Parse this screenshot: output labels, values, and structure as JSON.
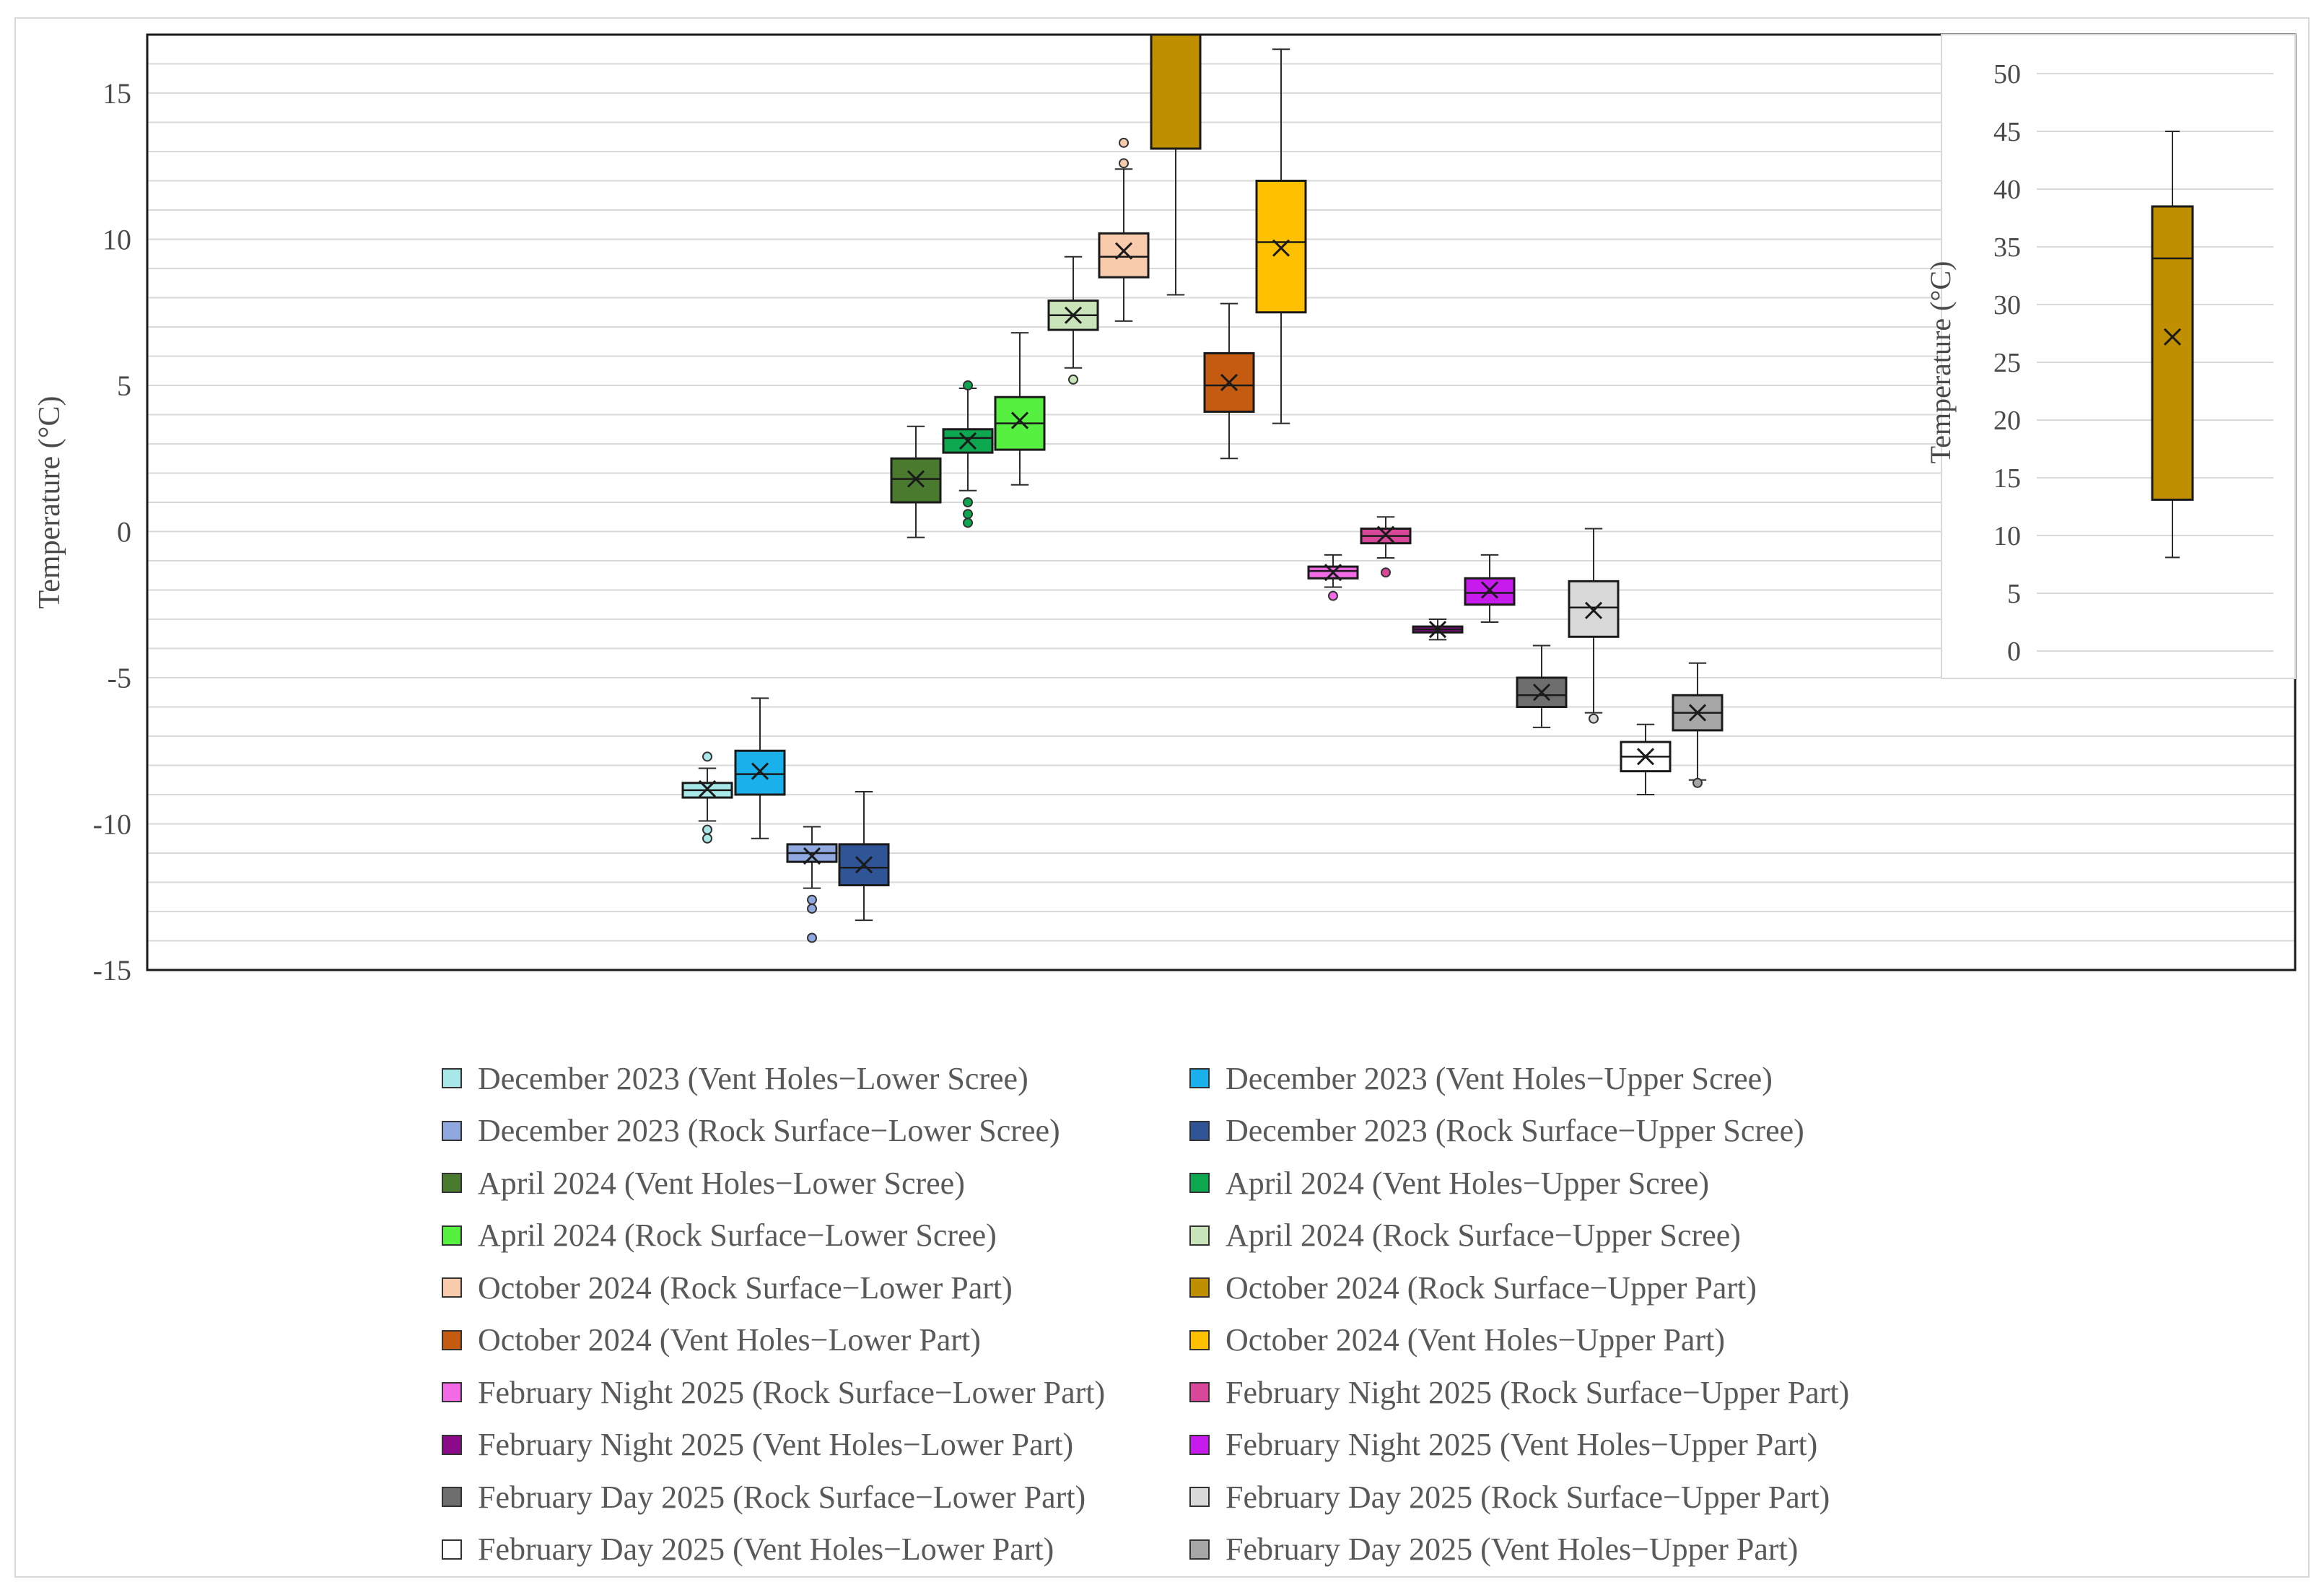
{
  "chart_data": [
    {
      "type": "box",
      "ylabel": "Temperature  (°C)",
      "ylim": [
        -15,
        17
      ],
      "y_ticks": [
        -15,
        -10,
        -5,
        0,
        5,
        10,
        15
      ],
      "y_tick_labels": [
        "-15",
        "-10",
        "-5",
        "0",
        "5",
        "10",
        "15"
      ],
      "grid": true,
      "legend_position": "bottom",
      "series": [
        {
          "name": "December 2023 (Vent Holes−Lower Scree)",
          "color": "#a9e8e8",
          "min": -9.9,
          "q1": -9.1,
          "median": -8.85,
          "q3": -8.6,
          "max": -8.1,
          "mean": -8.8,
          "outliers": [
            -7.7,
            -10.2,
            -10.5
          ]
        },
        {
          "name": "December 2023 (Vent Holes−Upper Scree)",
          "color": "#1ab0eb",
          "min": -10.5,
          "q1": -9.0,
          "median": -8.3,
          "q3": -7.5,
          "max": -5.7,
          "mean": -8.2,
          "outliers": []
        },
        {
          "name": "December 2023 (Rock Surface−Lower Scree)",
          "color": "#8fa8e0",
          "min": -12.2,
          "q1": -11.3,
          "median": -11.0,
          "q3": -10.7,
          "max": -10.1,
          "mean": -11.1,
          "outliers": [
            -12.6,
            -12.9,
            -13.9
          ]
        },
        {
          "name": "December 2023 (Rock Surface−Upper Scree)",
          "color": "#2f5597",
          "min": -13.3,
          "q1": -12.1,
          "median": -11.5,
          "q3": -10.7,
          "max": -8.9,
          "mean": -11.4,
          "outliers": []
        },
        {
          "name": "April 2024 (Vent Holes−Lower Scree)",
          "color": "#4a7a2e",
          "min": -0.2,
          "q1": 1.0,
          "median": 1.8,
          "q3": 2.5,
          "max": 3.6,
          "mean": 1.8,
          "outliers": []
        },
        {
          "name": "April 2024 (Vent Holes−Upper Scree)",
          "color": "#0da750",
          "min": 1.4,
          "q1": 2.7,
          "median": 3.2,
          "q3": 3.5,
          "max": 4.9,
          "mean": 3.1,
          "outliers": [
            5.0,
            1.0,
            0.6,
            0.3
          ]
        },
        {
          "name": "April 2024 (Rock Surface−Lower Scree)",
          "color": "#55f040",
          "min": 1.6,
          "q1": 2.8,
          "median": 3.7,
          "q3": 4.6,
          "max": 6.8,
          "mean": 3.8,
          "outliers": []
        },
        {
          "name": "April 2024 (Rock Surface−Upper Scree)",
          "color": "#c9e4b9",
          "min": 5.6,
          "q1": 6.9,
          "median": 7.4,
          "q3": 7.9,
          "max": 9.4,
          "mean": 7.4,
          "outliers": [
            5.2
          ]
        },
        {
          "name": "October 2024 (Rock Surface−Lower Part)",
          "color": "#f8cbad",
          "min": 7.2,
          "q1": 8.7,
          "median": 9.4,
          "q3": 10.2,
          "max": 12.4,
          "mean": 9.6,
          "outliers": [
            12.6,
            13.3
          ]
        },
        {
          "name": "October 2024 (Rock Surface−Upper Part)",
          "color": "#bf8f00",
          "min": 8.1,
          "q1": 13.1,
          "median": 34.0,
          "q3": 38.5,
          "max": 45.0,
          "mean": 27.2,
          "outliers": []
        },
        {
          "name": "October 2024 (Vent Holes−Lower Part)",
          "color": "#c55a11",
          "min": 2.5,
          "q1": 4.1,
          "median": 5.0,
          "q3": 6.1,
          "max": 7.8,
          "mean": 5.1,
          "outliers": []
        },
        {
          "name": "October 2024 (Vent Holes−Upper Part)",
          "color": "#ffc000",
          "min": 3.7,
          "q1": 7.5,
          "median": 9.9,
          "q3": 12.0,
          "max": 16.5,
          "mean": 9.7,
          "outliers": []
        },
        {
          "name": "February Night 2025 (Rock Surface−Lower Part)",
          "color": "#f26ae6",
          "min": -1.9,
          "q1": -1.6,
          "median": -1.35,
          "q3": -1.2,
          "max": -0.8,
          "mean": -1.4,
          "outliers": [
            -2.2
          ]
        },
        {
          "name": "February Night 2025 (Rock Surface−Upper Part)",
          "color": "#d9479b",
          "min": -0.9,
          "q1": -0.4,
          "median": -0.15,
          "q3": 0.1,
          "max": 0.5,
          "mean": -0.1,
          "outliers": [
            -1.4
          ]
        },
        {
          "name": "February Night 2025 (Vent Holes−Lower Part)",
          "color": "#8a0a8a",
          "min": -3.7,
          "q1": -3.45,
          "median": -3.35,
          "q3": -3.25,
          "max": -3.0,
          "mean": -3.35,
          "outliers": []
        },
        {
          "name": "February Night 2025 (Vent Holes−Upper Part)",
          "color": "#c71aed",
          "min": -3.1,
          "q1": -2.5,
          "median": -2.1,
          "q3": -1.6,
          "max": -0.8,
          "mean": -2.0,
          "outliers": []
        },
        {
          "name": "February Day 2025 (Rock Surface−Lower Part)",
          "color": "#6e6e6e",
          "min": -6.7,
          "q1": -6.0,
          "median": -5.6,
          "q3": -5.0,
          "max": -3.9,
          "mean": -5.5,
          "outliers": []
        },
        {
          "name": "February Day 2025 (Rock Surface−Upper Part)",
          "color": "#d9d9d9",
          "min": -6.2,
          "q1": -3.6,
          "median": -2.6,
          "q3": -1.7,
          "max": 0.1,
          "mean": -2.7,
          "outliers": [
            -6.4
          ]
        },
        {
          "name": "February Day 2025 (Vent Holes−Lower Part)",
          "color": "#ffffff",
          "min": -9.0,
          "q1": -8.2,
          "median": -7.7,
          "q3": -7.2,
          "max": -6.6,
          "mean": -7.7,
          "outliers": []
        },
        {
          "name": "February Day 2025 (Vent Holes−Upper Part)",
          "color": "#a6a6a6",
          "min": -8.5,
          "q1": -6.8,
          "median": -6.2,
          "q3": -5.6,
          "max": -4.5,
          "mean": -6.2,
          "outliers": [
            -8.6
          ]
        }
      ]
    },
    {
      "type": "box",
      "ylabel": "Temperature (°C)",
      "ylim": [
        0,
        50
      ],
      "y_ticks": [
        0,
        5,
        10,
        15,
        20,
        25,
        30,
        35,
        40,
        45,
        50
      ],
      "y_tick_labels": [
        "0",
        "5",
        "10",
        "15",
        "20",
        "25",
        "30",
        "35",
        "40",
        "45",
        "50"
      ],
      "grid": true,
      "legend_position": "top-right",
      "series": [
        {
          "name": "October 2024 (Rock Surface−Upper Part)",
          "color": "#bf8f00",
          "min": 8.1,
          "q1": 13.1,
          "median": 34.0,
          "q3": 38.5,
          "max": 45.0,
          "mean": 27.2,
          "outliers": []
        }
      ]
    }
  ]
}
